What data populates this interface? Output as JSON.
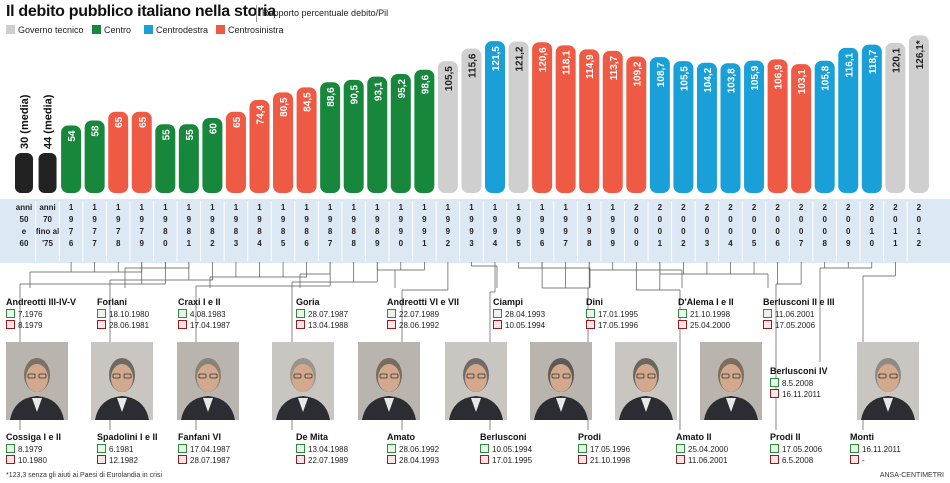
{
  "title": "Il debito pubblico italiano nella storia",
  "subtitle": "Rapporto percentuale debito/Pil",
  "legend": [
    {
      "label": "Governo tecnico",
      "color": "#cfcfcf"
    },
    {
      "label": "Centro",
      "color": "#17873c"
    },
    {
      "label": "Centrodestra",
      "color": "#1aa0d8"
    },
    {
      "label": "Centrosinistra",
      "color": "#ef5a45"
    }
  ],
  "colors": {
    "tecnico": "#cfcfcf",
    "centro": "#17873c",
    "centrodestra": "#1aa0d8",
    "centrosinistra": "#ef5a45",
    "media": "#222222",
    "strip": "#dce8f4"
  },
  "chart_data": {
    "type": "bar",
    "ylabel": "",
    "categories": [
      "anni 50 e 60",
      "anni 70 fino al '75",
      "1976",
      "1977",
      "1978",
      "1979",
      "1980",
      "1981",
      "1982",
      "1983",
      "1984",
      "1985",
      "1986",
      "1987",
      "1988",
      "1989",
      "1990",
      "1991",
      "1992",
      "1993",
      "1994",
      "1995",
      "1996",
      "1997",
      "1998",
      "1999",
      "2000",
      "2001",
      "2002",
      "2003",
      "2004",
      "2005",
      "2006",
      "2007",
      "2008",
      "2009",
      "2010",
      "2011",
      "2012"
    ],
    "category_lines": [
      [
        "anni",
        "50",
        "e",
        "60"
      ],
      [
        "anni",
        "70",
        "fino al",
        "'75"
      ],
      [
        "1",
        "9",
        "7",
        "6"
      ],
      [
        "1",
        "9",
        "7",
        "7"
      ],
      [
        "1",
        "9",
        "7",
        "8"
      ],
      [
        "1",
        "9",
        "7",
        "9"
      ],
      [
        "1",
        "9",
        "8",
        "0"
      ],
      [
        "1",
        "9",
        "8",
        "1"
      ],
      [
        "1",
        "9",
        "8",
        "2"
      ],
      [
        "1",
        "9",
        "8",
        "3"
      ],
      [
        "1",
        "9",
        "8",
        "4"
      ],
      [
        "1",
        "9",
        "8",
        "5"
      ],
      [
        "1",
        "9",
        "8",
        "6"
      ],
      [
        "1",
        "9",
        "8",
        "7"
      ],
      [
        "1",
        "9",
        "8",
        "8"
      ],
      [
        "1",
        "9",
        "8",
        "9"
      ],
      [
        "1",
        "9",
        "9",
        "0"
      ],
      [
        "1",
        "9",
        "9",
        "1"
      ],
      [
        "1",
        "9",
        "9",
        "2"
      ],
      [
        "1",
        "9",
        "9",
        "3"
      ],
      [
        "1",
        "9",
        "9",
        "4"
      ],
      [
        "1",
        "9",
        "9",
        "5"
      ],
      [
        "1",
        "9",
        "9",
        "6"
      ],
      [
        "1",
        "9",
        "9",
        "7"
      ],
      [
        "1",
        "9",
        "9",
        "8"
      ],
      [
        "1",
        "9",
        "9",
        "9"
      ],
      [
        "2",
        "0",
        "0",
        "0"
      ],
      [
        "2",
        "0",
        "0",
        "1"
      ],
      [
        "2",
        "0",
        "0",
        "2"
      ],
      [
        "2",
        "0",
        "0",
        "3"
      ],
      [
        "2",
        "0",
        "0",
        "4"
      ],
      [
        "2",
        "0",
        "0",
        "5"
      ],
      [
        "2",
        "0",
        "0",
        "6"
      ],
      [
        "2",
        "0",
        "0",
        "7"
      ],
      [
        "2",
        "0",
        "0",
        "8"
      ],
      [
        "2",
        "0",
        "0",
        "9"
      ],
      [
        "2",
        "0",
        "1",
        "0"
      ],
      [
        "2",
        "0",
        "1",
        "1"
      ],
      [
        "2",
        "0",
        "1",
        "2"
      ]
    ],
    "values": [
      30,
      44,
      54,
      58,
      65,
      65,
      55,
      55,
      60,
      65,
      74.4,
      80.5,
      84.5,
      88.6,
      90.5,
      93.1,
      95.2,
      98.6,
      105.5,
      115.6,
      121.5,
      121.2,
      120.6,
      118.1,
      114.9,
      113.7,
      109.2,
      108.7,
      105.5,
      104.2,
      103.8,
      105.9,
      106.9,
      103.1,
      105.8,
      116.1,
      118.7,
      120.1,
      126.1
    ],
    "labels": [
      "30 (media)",
      "44 (media)",
      "54",
      "58",
      "65",
      "65",
      "55",
      "55",
      "60",
      "65",
      "74,4",
      "80,5",
      "84,5",
      "88,6",
      "90,5",
      "93,1",
      "95,2",
      "98,6",
      "105,5",
      "115,6",
      "121,5",
      "121,2",
      "120,6",
      "118,1",
      "114,9",
      "113,7",
      "109,2",
      "108,7",
      "105,5",
      "104,2",
      "103,8",
      "105,9",
      "106,9",
      "103,1",
      "105,8",
      "116,1",
      "118,7",
      "120,1",
      "126,1*"
    ],
    "groups": [
      "media",
      "media",
      "centro",
      "centro",
      "centrosinistra",
      "centrosinistra",
      "centro",
      "centro",
      "centro",
      "centrosinistra",
      "centrosinistra",
      "centrosinistra",
      "centrosinistra",
      "centro",
      "centro",
      "centro",
      "centro",
      "centro",
      "tecnico",
      "tecnico",
      "centrodestra",
      "tecnico",
      "centrosinistra",
      "centrosinistra",
      "centrosinistra",
      "centrosinistra",
      "centrosinistra",
      "centrodestra",
      "centrodestra",
      "centrodestra",
      "centrodestra",
      "centrodestra",
      "centrosinistra",
      "centrosinistra",
      "centrodestra",
      "centrodestra",
      "centrodestra",
      "tecnico",
      "tecnico"
    ]
  },
  "governments_top": [
    {
      "name": "Andreotti III-IV-V",
      "start": "7.1976",
      "end": "8.1979"
    },
    {
      "name": "Forlani",
      "start": "18.10.1980",
      "end": "28.06.1981"
    },
    {
      "name": "Craxi I e II",
      "start": "4.08.1983",
      "end": "17.04.1987"
    },
    {
      "name": "Goria",
      "start": "28.07.1987",
      "end": "13.04.1988"
    },
    {
      "name": "Andreotti VI e VII",
      "start": "22.07.1989",
      "end": "28.06.1992"
    },
    {
      "name": "Ciampi",
      "start": "28.04.1993",
      "end": "10.05.1994"
    },
    {
      "name": "Dini",
      "start": "17.01.1995",
      "end": "17.05.1996"
    },
    {
      "name": "D'Alema I e II",
      "start": "21.10.1998",
      "end": "25.04.2000"
    },
    {
      "name": "Berlusconi II e III",
      "start": "11.06.2001",
      "end": "17.05.2006"
    }
  ],
  "governments_bottom": [
    {
      "name": "Cossiga I e II",
      "start": "8.1979",
      "end": "10.1980"
    },
    {
      "name": "Spadolini I e II",
      "start": "6.1981",
      "end": "12.1982"
    },
    {
      "name": "Fanfani VI",
      "start": "17.04.1987",
      "end": "28.07.1987"
    },
    {
      "name": "De Mita",
      "start": "13.04.1988",
      "end": "22.07.1989"
    },
    {
      "name": "Amato",
      "start": "28.06.1992",
      "end": "28.04.1993"
    },
    {
      "name": "Berlusconi",
      "start": "10.05.1994",
      "end": "17.01.1995"
    },
    {
      "name": "Prodi",
      "start": "17.05.1996",
      "end": "21.10.1998"
    },
    {
      "name": "Amato II",
      "start": "25.04.2000",
      "end": "11.06.2001"
    },
    {
      "name": "Prodi II",
      "start": "17.05.2006",
      "end": "6.5.2008"
    },
    {
      "name": "Monti",
      "start": "16.11.2011",
      "end": "-"
    }
  ],
  "government_extra": {
    "name": "Berlusconi IV",
    "start": "8.5.2008",
    "end": "16.11.2011"
  },
  "footnote": "*123,3 senza gli aiuti ai Paesi di Eurolandia in crisi",
  "credit": "ANSA-CENTIMETRI"
}
